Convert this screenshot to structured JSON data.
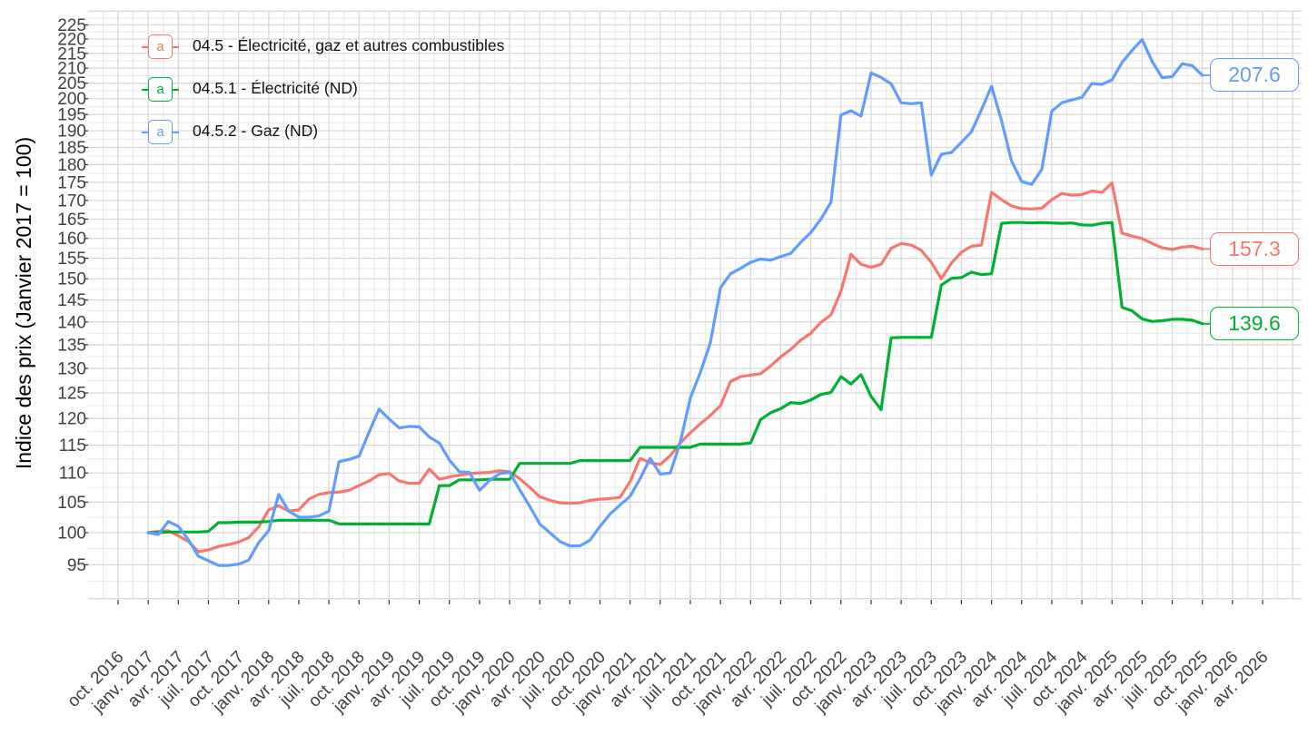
{
  "figure": {
    "y_axis_title": "Indice des prix (Janvier 2017 = 100)",
    "y_ticks": [
      95,
      100,
      105,
      110,
      115,
      120,
      125,
      130,
      135,
      140,
      145,
      150,
      155,
      160,
      165,
      170,
      175,
      180,
      185,
      190,
      195,
      200,
      205,
      210,
      215,
      220,
      225
    ],
    "x_ticks": [
      "oct. 2016",
      "janv. 2017",
      "avr. 2017",
      "juil. 2017",
      "oct. 2017",
      "janv. 2018",
      "avr. 2018",
      "juil. 2018",
      "oct. 2018",
      "janv. 2019",
      "avr. 2019",
      "juil. 2019",
      "oct. 2019",
      "janv. 2020",
      "avr. 2020",
      "juil. 2020",
      "oct. 2020",
      "janv. 2021",
      "avr. 2021",
      "juil. 2021",
      "oct. 2021",
      "janv. 2022",
      "avr. 2022",
      "juil. 2022",
      "oct. 2022",
      "janv. 2023",
      "avr. 2023",
      "juil. 2023",
      "oct. 2023",
      "janv. 2024",
      "avr. 2024",
      "juil. 2024",
      "oct. 2024",
      "janv. 2025",
      "avr. 2025",
      "juil. 2025",
      "oct. 2025",
      "janv. 2026",
      "avr. 2026"
    ]
  },
  "colors": {
    "red": "#F8766D",
    "green": "#00B031",
    "blue": "#619CFF",
    "grid_major": "#D8D8D8",
    "grid_minor": "#E7E7E7",
    "tick_text": "#404040",
    "tick_mark": "#333333"
  },
  "legend": {
    "items": [
      {
        "glyph": "a",
        "label": "04.5 - Électricité, gaz et autres combustibles",
        "color": "#F8766D"
      },
      {
        "glyph": "a",
        "label": "04.5.1 - Électricité (ND)",
        "color": "#00B031"
      },
      {
        "glyph": "a",
        "label": "04.5.2 - Gaz (ND)",
        "color": "#619CFF"
      }
    ]
  },
  "end_labels": [
    {
      "value": "207.6",
      "color": "#619CFF"
    },
    {
      "value": "157.3",
      "color": "#F8766D"
    },
    {
      "value": "139.6",
      "color": "#00B031"
    }
  ],
  "chart_data": {
    "type": "line",
    "title": "",
    "xlabel": "",
    "ylabel": "Indice des prix (Janvier 2017 = 100)",
    "y_scale": "log",
    "ylim": [
      90,
      230
    ],
    "x_range_ticks": [
      "oct. 2016",
      "avr. 2026"
    ],
    "data_start": "janv. 2017",
    "data_end": "oct. 2025",
    "frequency": "monthly",
    "grid": true,
    "legend_position": "top-left-inside",
    "series": [
      {
        "id": "04.5",
        "name": "04.5 - Électricité, gaz et autres combustibles",
        "color": "#F8766D",
        "end_value": 157.3,
        "values": [
          100,
          100.2,
          100.3,
          99.5,
          98.6,
          97,
          97.3,
          97.8,
          98.1,
          98.5,
          99.2,
          100.9,
          103.7,
          104.4,
          103.5,
          103.7,
          105.5,
          106.3,
          106.6,
          106.7,
          107,
          107.8,
          108.6,
          109.7,
          109.9,
          108.6,
          108.2,
          108.2,
          110.7,
          108.9,
          109.3,
          109.6,
          109.9,
          110,
          110.1,
          110.4,
          110.2,
          109,
          107.5,
          105.9,
          105.3,
          104.9,
          104.8,
          104.9,
          105.3,
          105.5,
          105.6,
          105.8,
          108.5,
          112.6,
          111.8,
          111.5,
          113.1,
          115.4,
          117.3,
          119,
          120.6,
          122.5,
          127.3,
          128.3,
          128.6,
          128.9,
          130.5,
          132.4,
          134,
          136,
          137.5,
          139.9,
          141.6,
          147,
          156,
          153.5,
          152.8,
          153.5,
          157.5,
          158.7,
          158.3,
          157,
          154,
          150,
          153.8,
          156.5,
          158,
          158.3,
          172.2,
          170.2,
          168.5,
          167.8,
          167.7,
          167.9,
          170.2,
          171.9,
          171.4,
          171.6,
          172.6,
          172.2,
          174.8,
          161.3,
          160.6,
          159.9,
          158.7,
          157.6,
          157.2,
          157.8,
          158,
          157.3
        ]
      },
      {
        "id": "04.5.1",
        "name": "04.5.1 - Électricité (ND)",
        "color": "#00B031",
        "end_value": 139.6,
        "values": [
          100,
          100,
          100.1,
          100.1,
          100.1,
          100.1,
          100.2,
          101.6,
          101.6,
          101.7,
          101.7,
          101.7,
          101.8,
          102,
          102,
          102,
          102,
          102,
          102,
          101.4,
          101.4,
          101.4,
          101.4,
          101.4,
          101.4,
          101.4,
          101.4,
          101.4,
          101.4,
          107.8,
          107.8,
          108.8,
          108.8,
          108.8,
          108.9,
          108.9,
          108.9,
          111.7,
          111.7,
          111.7,
          111.7,
          111.7,
          111.7,
          112.2,
          112.2,
          112.2,
          112.2,
          112.2,
          112.2,
          114.6,
          114.6,
          114.6,
          114.6,
          114.6,
          114.6,
          115.2,
          115.2,
          115.2,
          115.2,
          115.2,
          115.4,
          119.8,
          121.1,
          121.9,
          123.1,
          122.9,
          123.6,
          124.7,
          125.1,
          128.3,
          126.8,
          128.7,
          124.3,
          121.7,
          136.5,
          136.6,
          136.6,
          136.6,
          136.6,
          148.5,
          150.1,
          150.3,
          151.6,
          151,
          151.2,
          163.9,
          164.1,
          164.1,
          164,
          164.1,
          164,
          163.9,
          164,
          163.5,
          163.4,
          163.9,
          164.1,
          143.3,
          142.5,
          140.7,
          140.1,
          140.3,
          140.6,
          140.6,
          140.4,
          139.6
        ]
      },
      {
        "id": "04.5.2",
        "name": "04.5.2 - Gaz (ND)",
        "color": "#619CFF",
        "end_value": 207.6,
        "values": [
          100,
          99.7,
          101.8,
          101,
          98.9,
          96.3,
          95.6,
          94.9,
          94.9,
          95.1,
          95.7,
          98.4,
          100.3,
          106.3,
          103.5,
          102.5,
          102.5,
          102.7,
          103.5,
          112,
          112.4,
          113,
          117.4,
          121.8,
          119.9,
          118.2,
          118.5,
          118.4,
          116.5,
          115.4,
          112.3,
          110.2,
          110.1,
          107,
          108.7,
          109.9,
          110.1,
          107.1,
          104.3,
          101.4,
          100,
          98.6,
          97.9,
          97.9,
          98.8,
          101,
          103,
          104.5,
          106,
          109,
          112.6,
          109.8,
          110,
          115.6,
          124,
          129.2,
          135.5,
          147.9,
          151.2,
          152.5,
          154,
          154.8,
          154.5,
          155.4,
          156.2,
          159,
          161.5,
          165,
          169.5,
          194.8,
          196.2,
          194.5,
          208.4,
          206.9,
          204.8,
          198.7,
          198.4,
          198.7,
          177,
          183,
          183.5,
          186.5,
          189.7,
          196.5,
          204,
          193,
          181,
          175.2,
          174.4,
          178.6,
          196,
          198.7,
          199.6,
          200.4,
          204.9,
          204.6,
          206.1,
          211.9,
          216,
          219.8,
          212.2,
          206.8,
          207.2,
          211.5,
          210.8,
          207.6
        ]
      }
    ]
  }
}
